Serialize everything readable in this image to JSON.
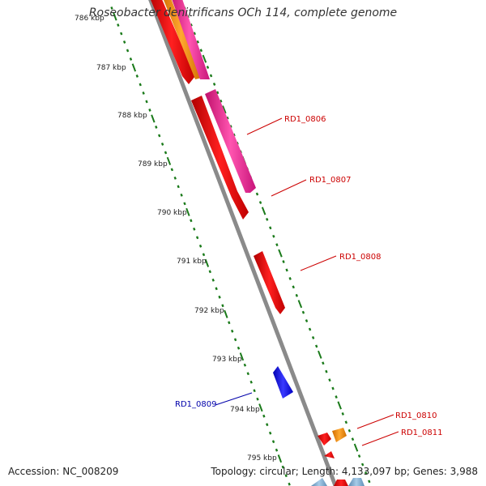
{
  "title": "Roseobacter denitrificans OCh 114, complete genome",
  "accession_text": "Accession: NC_008209",
  "topology_text": "Topology: circular; Length: 4,133,097 bp; Genes: 3,988",
  "colors": {
    "backbone": "#8a8a8a",
    "ticks": "#1a7a1a",
    "red": "#ee0000",
    "pink": "#ee1d8c",
    "orange": "#ff8c00",
    "blue": "#1a1aee",
    "lightblue": "#7aa8d0",
    "label_red": "#cc0000",
    "label_blue": "#0000aa"
  },
  "scale": {
    "labels": [
      "786 kbp",
      "787 kbp",
      "788 kbp",
      "789 kbp",
      "790 kbp",
      "791 kbp",
      "792 kbp",
      "793 kbp",
      "794 kbp",
      "795 kbp"
    ]
  },
  "genes": [
    {
      "id": "RD1_0806",
      "label": "RD1_0806",
      "color": "pink",
      "strand": "+"
    },
    {
      "id": "RD1_0807",
      "label": "RD1_0807",
      "color": "red",
      "strand": "-"
    },
    {
      "id": "RD1_0808",
      "label": "RD1_0808",
      "color": "red",
      "strand": "-"
    },
    {
      "id": "RD1_0809",
      "label": "RD1_0809",
      "color": "blue",
      "strand": "+"
    },
    {
      "id": "RD1_0810",
      "label": "RD1_0810",
      "color": "orange",
      "strand": "+"
    },
    {
      "id": "RD1_0811",
      "label": "RD1_0811",
      "color": "red",
      "strand": "-"
    }
  ]
}
